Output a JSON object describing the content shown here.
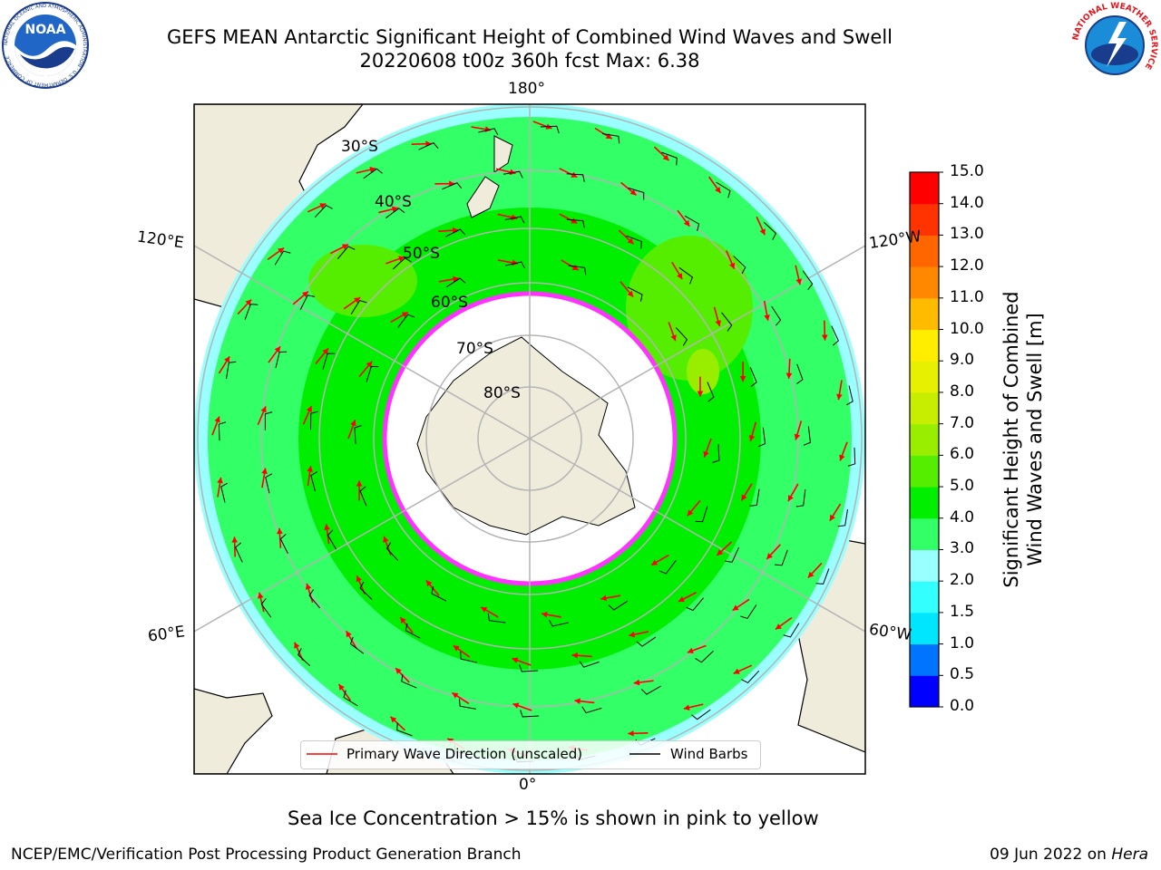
{
  "header": {
    "title_line1": "GEFS MEAN Antarctic Significant Height of Combined Wind Waves and Swell",
    "title_line2": "20220608 t00z 360h fcst   Max: 6.38"
  },
  "logos": {
    "left": {
      "icon": "noaa-logo",
      "text": "NOAA",
      "ring_text": "NATIONAL OCEANIC AND ATMOSPHERIC ADMINISTRATION · U.S. DEPARTMENT OF COMMERCE"
    },
    "right": {
      "icon": "nws-logo",
      "ring_text": "NATIONAL WEATHER SERVICE"
    }
  },
  "map": {
    "projection": "south-polar-stereographic",
    "longitude_labels": {
      "top": "180°",
      "bottom": "0°",
      "left_upper": "120°E",
      "left_lower": "60°E",
      "right_upper": "120°W",
      "right_lower": "60°W"
    },
    "latitude_labels": [
      "30°S",
      "40°S",
      "50°S",
      "60°S",
      "70°S",
      "80°S"
    ],
    "colors": {
      "land": "#efecdc",
      "ice_interior": "#ffffff",
      "ice_edge": "#ff33ff",
      "wave_arrow": "#ff0000",
      "wind_barb": "#000000",
      "grid": "#b4b4b4"
    },
    "legend": {
      "primary_wave": "Primary Wave Direction (unscaled)",
      "wind_barbs": "Wind Barbs"
    }
  },
  "colorbar": {
    "label_line1": "Significant Height of Combined",
    "label_line2": "Wind Waves and Swell [m]",
    "ticks": [
      "0.0",
      "0.5",
      "1.0",
      "1.5",
      "2.0",
      "3.0",
      "4.0",
      "5.0",
      "6.0",
      "7.0",
      "8.0",
      "9.0",
      "10.0",
      "11.0",
      "12.0",
      "13.0",
      "14.0",
      "15.0"
    ],
    "colors": [
      "#0000ff",
      "#0073ff",
      "#00e6ff",
      "#33ffff",
      "#99ffff",
      "#33ff66",
      "#00ee00",
      "#55ee00",
      "#99ee00",
      "#c7ee00",
      "#e6f000",
      "#ffee00",
      "#ffbb00",
      "#ff8800",
      "#ff6600",
      "#ff3300",
      "#ff0000"
    ]
  },
  "note": "Sea Ice Concentration > 15% is shown in pink to yellow",
  "footer": {
    "left": "NCEP/EMC/Verification Post Processing Product Generation Branch",
    "right_date": "09 Jun 2022 on",
    "right_host": "Hera"
  }
}
